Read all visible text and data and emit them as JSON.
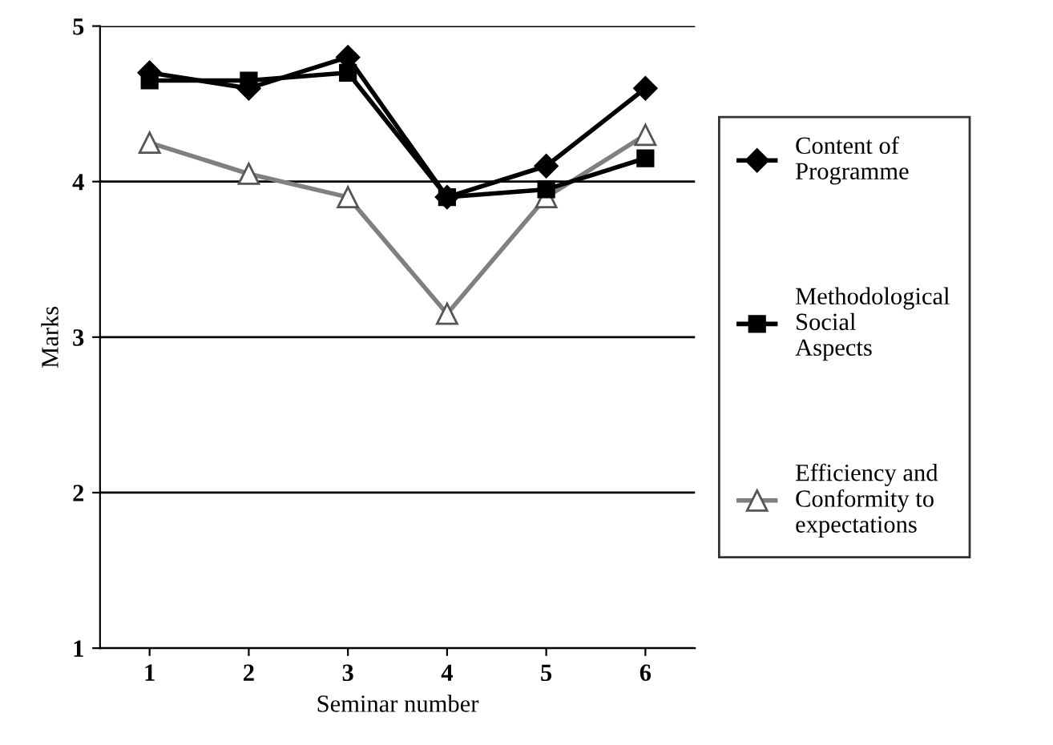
{
  "chart_data": {
    "type": "line",
    "xlabel": "Seminar number",
    "ylabel": "Marks",
    "categories": [
      "1",
      "2",
      "3",
      "4",
      "5",
      "6"
    ],
    "series": [
      {
        "name": "Content of\nProgramme",
        "color": "#000000",
        "marker": "diamond",
        "values": [
          4.7,
          4.6,
          4.8,
          3.9,
          4.1,
          4.6
        ]
      },
      {
        "name": "Methodological\nSocial\nAspects",
        "color": "#000000",
        "marker": "square",
        "values": [
          4.65,
          4.65,
          4.7,
          3.9,
          3.95,
          4.15
        ]
      },
      {
        "name": "Efficiency and\nConformity to\nexpectations",
        "color": "#808080",
        "marker": "triangle",
        "values": [
          4.25,
          4.05,
          3.9,
          3.15,
          3.9,
          4.3
        ]
      }
    ],
    "ylim": [
      1,
      5
    ],
    "yticks": [
      1,
      2,
      3,
      4,
      5
    ],
    "grid": "y",
    "legend": "right",
    "line_style": "solid"
  }
}
